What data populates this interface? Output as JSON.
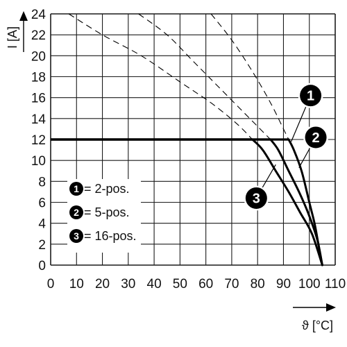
{
  "chart_data": {
    "type": "line",
    "xlabel": "ϑ [°C]",
    "ylabel": "I [A]",
    "xlim": [
      0,
      110
    ],
    "ylim": [
      0,
      24
    ],
    "x_ticks": [
      "0",
      "10",
      "20",
      "30",
      "40",
      "50",
      "60",
      "70",
      "80",
      "90",
      "100",
      "110"
    ],
    "y_ticks": [
      "0",
      "2",
      "4",
      "6",
      "8",
      "10",
      "12",
      "14",
      "16",
      "18",
      "20",
      "22",
      "24"
    ],
    "grid": true,
    "legend_placement": "lower-left",
    "legend": [
      {
        "marker": "1",
        "text": "= 2-pos."
      },
      {
        "marker": "2",
        "text": "= 5-pos."
      },
      {
        "marker": "3",
        "text": "= 16-pos."
      }
    ],
    "series": [
      {
        "marker": "1",
        "style": "solid",
        "points": [
          [
            0,
            12
          ],
          [
            92,
            12
          ],
          [
            94,
            11
          ],
          [
            97,
            9
          ],
          [
            100,
            6
          ],
          [
            102,
            4
          ],
          [
            103.5,
            2
          ],
          [
            105,
            0
          ]
        ]
      },
      {
        "marker": "2",
        "style": "solid",
        "points": [
          [
            0,
            12
          ],
          [
            85,
            12
          ],
          [
            88,
            11
          ],
          [
            92,
            9
          ],
          [
            96,
            7
          ],
          [
            99.5,
            5
          ],
          [
            103,
            2.5
          ],
          [
            105,
            0
          ]
        ]
      },
      {
        "marker": "3",
        "style": "solid",
        "points": [
          [
            0,
            12
          ],
          [
            78,
            12
          ],
          [
            82,
            11
          ],
          [
            87,
            9
          ],
          [
            92,
            7
          ],
          [
            96.5,
            5
          ],
          [
            101,
            3
          ],
          [
            105,
            0
          ]
        ]
      },
      {
        "marker": "1",
        "style": "dashed",
        "points": [
          [
            62,
            24
          ],
          [
            70,
            21.5
          ],
          [
            78,
            18.5
          ],
          [
            85,
            15.5
          ],
          [
            90,
            13
          ],
          [
            92,
            12
          ]
        ]
      },
      {
        "marker": "2",
        "style": "dashed",
        "points": [
          [
            34,
            24
          ],
          [
            45,
            22
          ],
          [
            55,
            19.5
          ],
          [
            65,
            17
          ],
          [
            75,
            14.5
          ],
          [
            85,
            12
          ]
        ]
      },
      {
        "marker": "3",
        "style": "dashed",
        "points": [
          [
            7,
            24
          ],
          [
            20,
            22
          ],
          [
            35,
            20
          ],
          [
            50,
            17.5
          ],
          [
            62,
            15.5
          ],
          [
            72,
            13.5
          ],
          [
            78,
            12
          ]
        ]
      }
    ],
    "markers": [
      {
        "label": "1",
        "x": 100.5,
        "y": 16.2,
        "pointer": [
          93,
          11.8
        ]
      },
      {
        "label": "2",
        "x": 102.5,
        "y": 12.2,
        "pointer": [
          96,
          9.3
        ]
      },
      {
        "label": "3",
        "x": 79.5,
        "y": 6.4,
        "pointer": [
          87,
          9.6
        ]
      }
    ],
    "colors": {
      "line": "#000000",
      "grid": "#1a1a1a",
      "text": "#111111"
    }
  }
}
